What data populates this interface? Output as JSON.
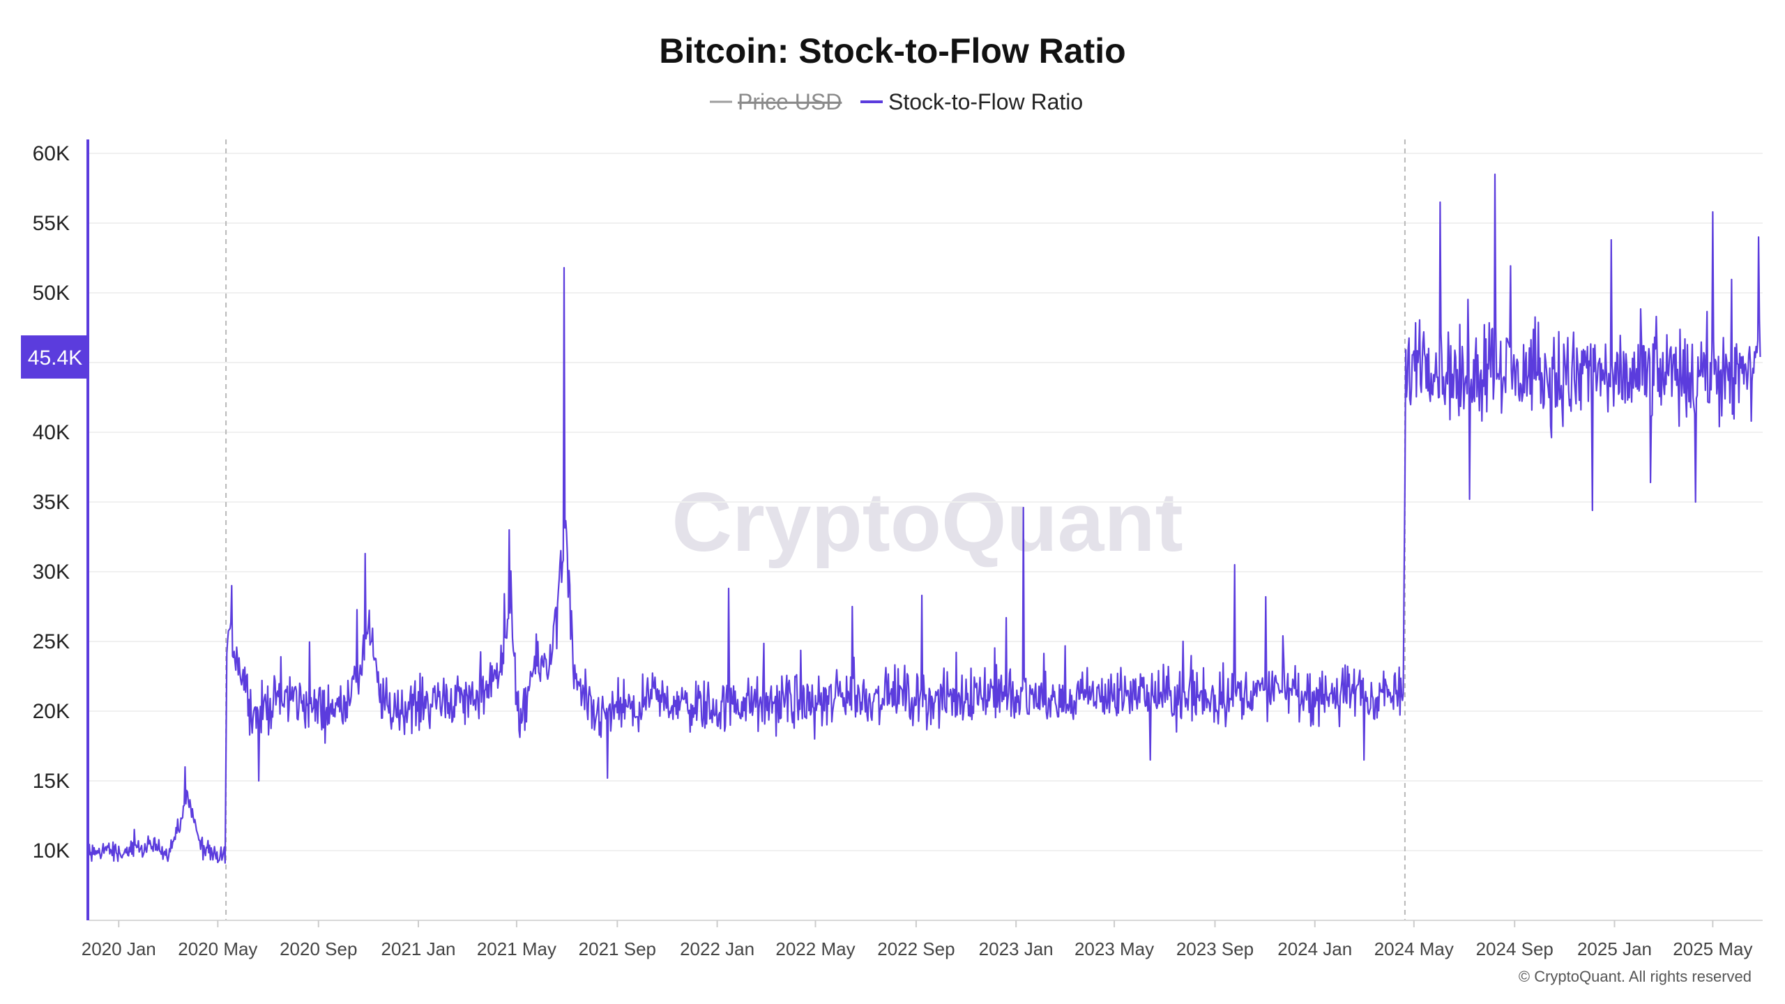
{
  "chart_data": {
    "type": "line",
    "title": "Bitcoin: Stock-to-Flow Ratio",
    "legend": [
      {
        "name": "Price USD",
        "color": "#9e9e9e",
        "hidden": true
      },
      {
        "name": "Stock-to-Flow Ratio",
        "color": "#5b3cdd",
        "hidden": false
      }
    ],
    "legend_placement": "top-center",
    "grid": true,
    "x_tick_labels": [
      "2020 Jan",
      "2020 May",
      "2020 Sep",
      "2021 Jan",
      "2021 May",
      "2021 Sep",
      "2022 Jan",
      "2022 May",
      "2022 Sep",
      "2023 Jan",
      "2023 May",
      "2023 Sep",
      "2024 Jan",
      "2024 May",
      "2024 Sep",
      "2025 Jan",
      "2025 May"
    ],
    "x_range": [
      "2019-11-26",
      "2025-07-01"
    ],
    "y_tick_labels": [
      "10K",
      "15K",
      "20K",
      "25K",
      "30K",
      "35K",
      "40K",
      "45K",
      "50K",
      "55K",
      "60K"
    ],
    "y_range": [
      5000,
      61000
    ],
    "current_value_label": "45.4K",
    "current_value": 45400,
    "halving_markers": [
      "2020-05-11",
      "2024-04-20"
    ],
    "series": [
      {
        "name": "Stock-to-Flow Ratio",
        "color": "#5b3cdd",
        "points": [
          [
            "2019-11-26",
            9500
          ],
          [
            "2019-12-15",
            10200
          ],
          [
            "2020-01-01",
            9800
          ],
          [
            "2020-01-20",
            10000
          ],
          [
            "2020-02-10",
            10300
          ],
          [
            "2020-03-01",
            9900
          ],
          [
            "2020-03-15",
            11500
          ],
          [
            "2020-03-25",
            14000
          ],
          [
            "2020-04-01",
            12500
          ],
          [
            "2020-04-10",
            10200
          ],
          [
            "2020-04-25",
            9500
          ],
          [
            "2020-05-10",
            9700
          ],
          [
            "2020-05-12",
            24500
          ],
          [
            "2020-05-20",
            25000
          ],
          [
            "2020-06-01",
            22500
          ],
          [
            "2020-06-15",
            19500
          ],
          [
            "2020-07-01",
            20500
          ],
          [
            "2020-08-01",
            21000
          ],
          [
            "2020-09-01",
            20000
          ],
          [
            "2020-10-01",
            20500
          ],
          [
            "2020-10-20",
            22500
          ],
          [
            "2020-11-01",
            26000
          ],
          [
            "2020-11-15",
            21000
          ],
          [
            "2020-12-01",
            20000
          ],
          [
            "2021-01-01",
            20500
          ],
          [
            "2021-02-01",
            21000
          ],
          [
            "2021-03-01",
            20800
          ],
          [
            "2021-04-01",
            21500
          ],
          [
            "2021-04-25",
            27000
          ],
          [
            "2021-05-05",
            18000
          ],
          [
            "2021-05-20",
            23000
          ],
          [
            "2021-06-10",
            23500
          ],
          [
            "2021-06-25",
            30000
          ],
          [
            "2021-07-01",
            33000
          ],
          [
            "2021-07-10",
            22000
          ],
          [
            "2021-08-01",
            19500
          ],
          [
            "2021-09-01",
            20000
          ],
          [
            "2021-10-01",
            20300
          ],
          [
            "2021-11-01",
            20800
          ],
          [
            "2021-12-01",
            20500
          ],
          [
            "2022-01-01",
            20200
          ],
          [
            "2022-02-01",
            20600
          ],
          [
            "2022-03-01",
            20400
          ],
          [
            "2022-04-01",
            20800
          ],
          [
            "2022-05-01",
            20500
          ],
          [
            "2022-06-01",
            21200
          ],
          [
            "2022-07-01",
            20900
          ],
          [
            "2022-08-01",
            21300
          ],
          [
            "2022-09-01",
            21000
          ],
          [
            "2022-10-01",
            20700
          ],
          [
            "2022-11-01",
            21200
          ],
          [
            "2022-12-01",
            21500
          ],
          [
            "2023-01-01",
            20800
          ],
          [
            "2023-02-01",
            21000
          ],
          [
            "2023-03-01",
            20600
          ],
          [
            "2023-04-01",
            21200
          ],
          [
            "2023-05-01",
            21000
          ],
          [
            "2023-06-01",
            21300
          ],
          [
            "2023-07-01",
            21100
          ],
          [
            "2023-08-01",
            21200
          ],
          [
            "2023-09-01",
            20800
          ],
          [
            "2023-10-01",
            21400
          ],
          [
            "2023-11-01",
            21300
          ],
          [
            "2023-12-01",
            21600
          ],
          [
            "2024-01-01",
            21000
          ],
          [
            "2024-02-01",
            21200
          ],
          [
            "2024-03-01",
            21300
          ],
          [
            "2024-04-18",
            21000
          ],
          [
            "2024-04-21",
            44000
          ],
          [
            "2024-05-10",
            46000
          ],
          [
            "2024-06-01",
            44500
          ],
          [
            "2024-07-01",
            43500
          ],
          [
            "2024-08-01",
            45500
          ],
          [
            "2024-09-01",
            44000
          ],
          [
            "2024-10-01",
            44200
          ],
          [
            "2024-11-01",
            43800
          ],
          [
            "2024-12-01",
            44500
          ],
          [
            "2025-01-01",
            43500
          ],
          [
            "2025-02-01",
            44000
          ],
          [
            "2025-03-01",
            44200
          ],
          [
            "2025-04-01",
            43600
          ],
          [
            "2025-05-01",
            44500
          ],
          [
            "2025-06-01",
            44000
          ],
          [
            "2025-06-28",
            45400
          ]
        ],
        "noise_amplitude": [
          [
            "2019-11-26",
            1100
          ],
          [
            "2020-05-11",
            1100
          ],
          [
            "2020-05-12",
            2800
          ],
          [
            "2024-04-19",
            2800
          ],
          [
            "2024-04-21",
            4800
          ],
          [
            "2025-06-28",
            4800
          ]
        ],
        "spikes": [
          [
            "2020-03-22",
            16000
          ],
          [
            "2020-05-18",
            29000
          ],
          [
            "2020-10-28",
            31300
          ],
          [
            "2021-04-22",
            33000
          ],
          [
            "2021-06-28",
            51800
          ],
          [
            "2022-01-15",
            28800
          ],
          [
            "2022-06-15",
            27500
          ],
          [
            "2022-09-08",
            28300
          ],
          [
            "2022-12-20",
            26700
          ],
          [
            "2023-01-10",
            34600
          ],
          [
            "2023-09-25",
            30500
          ],
          [
            "2023-11-02",
            28200
          ],
          [
            "2024-08-08",
            58500
          ],
          [
            "2024-06-02",
            56500
          ],
          [
            "2025-05-01",
            55800
          ],
          [
            "2025-06-26",
            54000
          ],
          [
            "2024-12-05",
            34400
          ],
          [
            "2025-04-10",
            35000
          ],
          [
            "2024-07-08",
            35200
          ],
          [
            "2025-02-14",
            36400
          ],
          [
            "2021-08-20",
            15200
          ],
          [
            "2020-06-20",
            15000
          ],
          [
            "2023-06-14",
            16500
          ],
          [
            "2024-03-01",
            16500
          ]
        ]
      }
    ],
    "watermark": "CryptoQuant",
    "copyright": "© CryptoQuant. All rights reserved"
  }
}
